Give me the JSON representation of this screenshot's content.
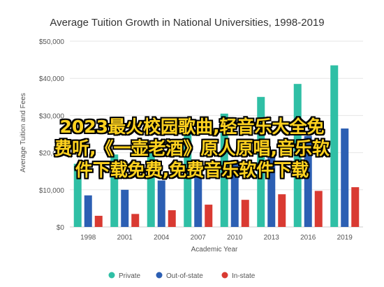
{
  "chart_data": {
    "type": "bar",
    "title": "Average Tuition Growth in National Universities, 1998-2019",
    "xlabel": "Academic Year",
    "ylabel": "Average Tuition and Fees",
    "ylim": [
      0,
      50000
    ],
    "yticks": [
      "$0",
      "$10,000",
      "$20,000",
      "$30,000",
      "$40,000",
      "$50,000"
    ],
    "categories": [
      "1998",
      "2001",
      "2004",
      "2007",
      "2010",
      "2013",
      "2016",
      "2019"
    ],
    "series": [
      {
        "name": "Private",
        "color": "#2fbfa5",
        "values": [
          17000,
          19500,
          22000,
          26500,
          30500,
          35000,
          38500,
          43500
        ]
      },
      {
        "name": "Out-of-state",
        "color": "#2c5fb3",
        "values": [
          8500,
          10000,
          12500,
          14500,
          18000,
          20500,
          24500,
          26500
        ]
      },
      {
        "name": "In-state",
        "color": "#d93a32",
        "values": [
          3000,
          3500,
          4500,
          6000,
          7300,
          8800,
          9700,
          10700
        ]
      }
    ],
    "grid": true,
    "legend_position": "bottom"
  },
  "overlay": {
    "lines": [
      "2023最火校园歌曲,轻音乐大全免",
      "费听,《一壶老酒》原人原唱,音乐软",
      "件下载免费,免费音乐软件下载"
    ]
  }
}
